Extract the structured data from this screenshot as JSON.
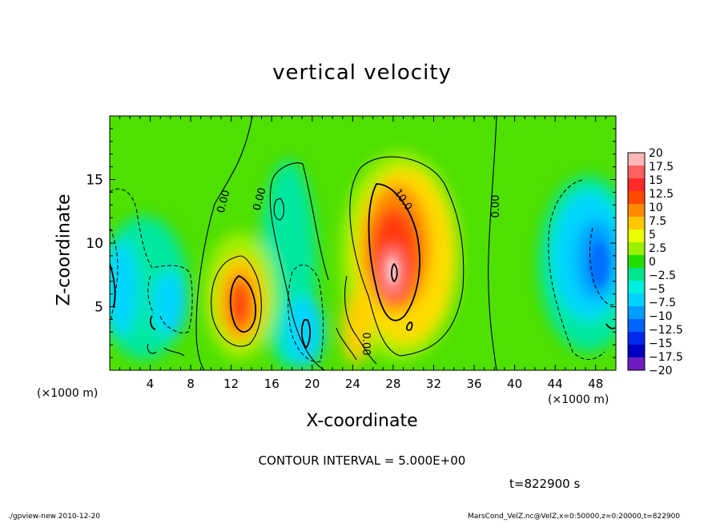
{
  "chart_data": {
    "type": "heatmap",
    "title": "vertical velocity",
    "xlabel": "X-coordinate",
    "ylabel": "Z-coordinate",
    "x_unit": "(×1000 m)",
    "xlim": [
      0,
      50
    ],
    "ylim": [
      0,
      20
    ],
    "x_ticks": [
      "4",
      "8",
      "12",
      "16",
      "20",
      "24",
      "28",
      "32",
      "36",
      "40",
      "44",
      "48"
    ],
    "y_ticks": [
      "5",
      "10",
      "15"
    ],
    "colorbar": {
      "labels": [
        "20",
        "17.5",
        "15",
        "12.5",
        "10",
        "7.5",
        "5",
        "2.5",
        "0",
        "−2.5",
        "−5",
        "−7.5",
        "−10",
        "−12.5",
        "−15",
        "−17.5",
        "−20"
      ],
      "colors": [
        "#ffb8b8",
        "#ff6060",
        "#ff2a2a",
        "#ff4a00",
        "#ff8a00",
        "#ffc800",
        "#e8ff00",
        "#9af000",
        "#22dd00",
        "#00e68c",
        "#00eedd",
        "#00d2ff",
        "#009cff",
        "#0064ff",
        "#0028ee",
        "#0000c0",
        "#6e1cc0"
      ]
    },
    "contour_labels": [
      "0.00",
      "0.00",
      "10.0",
      "0.00",
      "0.00"
    ],
    "grid": false
  },
  "annotations": {
    "contour_interval": "CONTOUR INTERVAL = 5.000E+00",
    "time": "t=822900 s",
    "footer_left": "./gpview-new  2010-12-20",
    "footer_right": "MarsCond_VelZ.nc@VelZ,x=0:50000,z=0:20000,t=822900"
  }
}
